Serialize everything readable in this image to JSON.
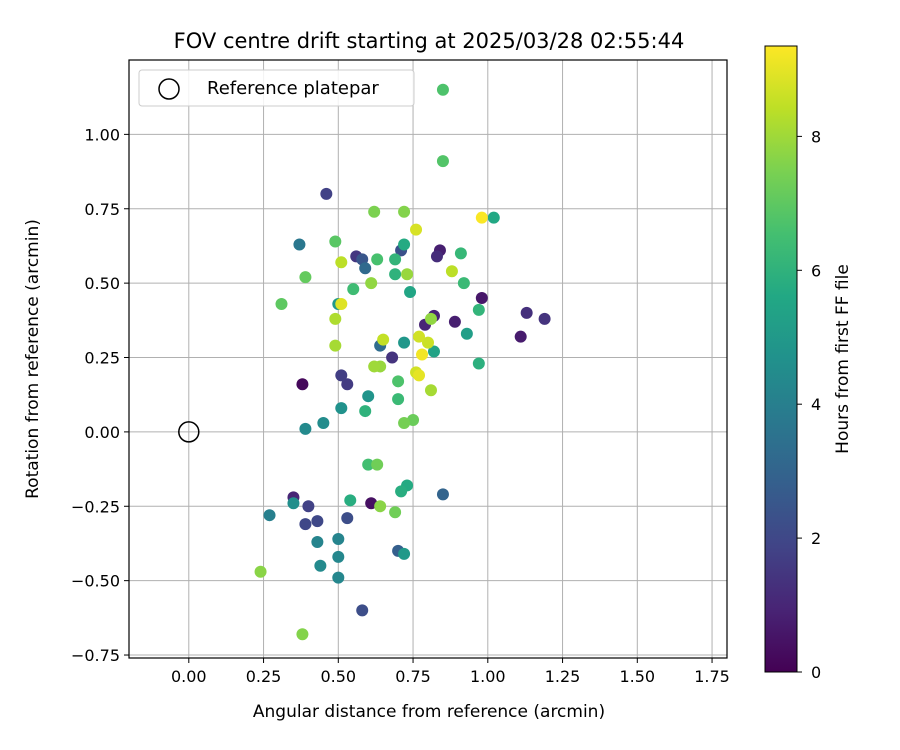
{
  "chart_data": {
    "type": "scatter",
    "title": "FOV centre drift starting at 2025/03/28 02:55:44",
    "xlabel": "Angular distance from reference (arcmin)",
    "ylabel": "Rotation from reference (arcmin)",
    "xlim": [
      -0.2,
      1.8
    ],
    "ylim": [
      -0.76,
      1.25
    ],
    "xticks": [
      "0.00",
      "0.25",
      "0.50",
      "0.75",
      "1.00",
      "1.25",
      "1.50",
      "1.75"
    ],
    "yticks": [
      "−0.75",
      "−0.50",
      "−0.25",
      "0.00",
      "0.25",
      "0.50",
      "0.75",
      "1.00"
    ],
    "grid": true,
    "legend": {
      "placement": "top-left",
      "entries": [
        "Reference platepar"
      ]
    },
    "reference_point": {
      "x": 0.0,
      "y": 0.0,
      "marker": "open-circle"
    },
    "colorbar": {
      "label": "Hours from first FF file",
      "colormap": "viridis",
      "range": [
        0,
        9.35
      ],
      "ticks": [
        "0",
        "2",
        "4",
        "6",
        "8"
      ]
    },
    "series": [
      {
        "points": [
          {
            "x": 0.38,
            "y": 0.16,
            "h": 0.2
          },
          {
            "x": 0.61,
            "y": -0.24,
            "h": 0.4
          },
          {
            "x": 0.84,
            "y": 0.61,
            "h": 0.8
          },
          {
            "x": 0.89,
            "y": 0.37,
            "h": 0.8
          },
          {
            "x": 1.11,
            "y": 0.32,
            "h": 0.7
          },
          {
            "x": 0.98,
            "y": 0.45,
            "h": 0.6
          },
          {
            "x": 0.35,
            "y": -0.22,
            "h": 1.0
          },
          {
            "x": 0.82,
            "y": 0.39,
            "h": 0.9
          },
          {
            "x": 0.79,
            "y": 0.36,
            "h": 1.0
          },
          {
            "x": 0.83,
            "y": 0.59,
            "h": 1.2
          },
          {
            "x": 1.13,
            "y": 0.4,
            "h": 1.3
          },
          {
            "x": 1.19,
            "y": 0.38,
            "h": 1.4
          },
          {
            "x": 0.68,
            "y": 0.25,
            "h": 1.4
          },
          {
            "x": 0.56,
            "y": 0.59,
            "h": 1.5
          },
          {
            "x": 0.53,
            "y": 0.16,
            "h": 1.6
          },
          {
            "x": 0.51,
            "y": 0.19,
            "h": 1.7
          },
          {
            "x": 0.46,
            "y": 0.8,
            "h": 1.8
          },
          {
            "x": 0.4,
            "y": -0.25,
            "h": 1.8
          },
          {
            "x": 0.39,
            "y": -0.31,
            "h": 2.0
          },
          {
            "x": 0.43,
            "y": -0.3,
            "h": 2.0
          },
          {
            "x": 0.53,
            "y": -0.29,
            "h": 2.2
          },
          {
            "x": 0.58,
            "y": -0.6,
            "h": 2.2
          },
          {
            "x": 0.71,
            "y": 0.61,
            "h": 2.3
          },
          {
            "x": 0.58,
            "y": 0.58,
            "h": 2.5
          },
          {
            "x": 0.7,
            "y": -0.4,
            "h": 2.8
          },
          {
            "x": 0.85,
            "y": -0.21,
            "h": 3.0
          },
          {
            "x": 0.59,
            "y": 0.55,
            "h": 3.2
          },
          {
            "x": 0.64,
            "y": 0.29,
            "h": 3.3
          },
          {
            "x": 0.37,
            "y": 0.63,
            "h": 3.7
          },
          {
            "x": 0.27,
            "y": -0.28,
            "h": 4.0
          },
          {
            "x": 0.5,
            "y": -0.36,
            "h": 4.2
          },
          {
            "x": 0.43,
            "y": -0.37,
            "h": 4.2
          },
          {
            "x": 0.5,
            "y": -0.42,
            "h": 4.3
          },
          {
            "x": 0.44,
            "y": -0.45,
            "h": 4.4
          },
          {
            "x": 0.5,
            "y": -0.49,
            "h": 4.3
          },
          {
            "x": 0.39,
            "y": 0.01,
            "h": 4.4
          },
          {
            "x": 0.45,
            "y": 0.03,
            "h": 4.5
          },
          {
            "x": 0.35,
            "y": -0.24,
            "h": 4.6
          },
          {
            "x": 0.51,
            "y": 0.08,
            "h": 4.7
          },
          {
            "x": 0.6,
            "y": 0.12,
            "h": 4.8
          },
          {
            "x": 0.72,
            "y": 0.3,
            "h": 4.9
          },
          {
            "x": 0.5,
            "y": 0.43,
            "h": 5.0
          },
          {
            "x": 0.72,
            "y": -0.41,
            "h": 5.0
          },
          {
            "x": 0.93,
            "y": 0.33,
            "h": 5.2
          },
          {
            "x": 0.82,
            "y": 0.27,
            "h": 5.4
          },
          {
            "x": 0.74,
            "y": 0.47,
            "h": 5.5
          },
          {
            "x": 1.02,
            "y": 0.72,
            "h": 5.6
          },
          {
            "x": 0.72,
            "y": 0.63,
            "h": 5.7
          },
          {
            "x": 0.73,
            "y": -0.18,
            "h": 5.7
          },
          {
            "x": 0.54,
            "y": -0.23,
            "h": 5.8
          },
          {
            "x": 0.71,
            "y": -0.2,
            "h": 5.8
          },
          {
            "x": 0.97,
            "y": 0.23,
            "h": 5.9
          },
          {
            "x": 0.69,
            "y": 0.53,
            "h": 6.0
          },
          {
            "x": 0.97,
            "y": 0.41,
            "h": 6.1
          },
          {
            "x": 0.59,
            "y": 0.07,
            "h": 6.0
          },
          {
            "x": 0.69,
            "y": 0.58,
            "h": 6.1
          },
          {
            "x": 0.91,
            "y": 0.6,
            "h": 6.2
          },
          {
            "x": 0.92,
            "y": 0.5,
            "h": 6.3
          },
          {
            "x": 0.7,
            "y": 0.11,
            "h": 6.3
          },
          {
            "x": 0.55,
            "y": 0.48,
            "h": 6.4
          },
          {
            "x": 0.6,
            "y": -0.11,
            "h": 6.5
          },
          {
            "x": 0.63,
            "y": 0.58,
            "h": 6.6
          },
          {
            "x": 0.85,
            "y": 1.15,
            "h": 6.7
          },
          {
            "x": 0.85,
            "y": 0.91,
            "h": 6.8
          },
          {
            "x": 0.7,
            "y": 0.17,
            "h": 6.7
          },
          {
            "x": 0.49,
            "y": 0.64,
            "h": 6.9
          },
          {
            "x": 0.31,
            "y": 0.43,
            "h": 7.0
          },
          {
            "x": 0.39,
            "y": 0.52,
            "h": 7.1
          },
          {
            "x": 0.75,
            "y": 0.04,
            "h": 7.2
          },
          {
            "x": 0.69,
            "y": -0.27,
            "h": 7.3
          },
          {
            "x": 0.63,
            "y": -0.11,
            "h": 7.3
          },
          {
            "x": 0.72,
            "y": 0.03,
            "h": 7.4
          },
          {
            "x": 0.62,
            "y": 0.74,
            "h": 7.5
          },
          {
            "x": 0.72,
            "y": 0.74,
            "h": 7.6
          },
          {
            "x": 0.38,
            "y": -0.68,
            "h": 7.6
          },
          {
            "x": 0.24,
            "y": -0.47,
            "h": 7.7
          },
          {
            "x": 0.64,
            "y": -0.25,
            "h": 7.7
          },
          {
            "x": 0.81,
            "y": 0.38,
            "h": 7.8
          },
          {
            "x": 0.61,
            "y": 0.5,
            "h": 7.8
          },
          {
            "x": 0.73,
            "y": 0.53,
            "h": 7.9
          },
          {
            "x": 0.64,
            "y": 0.22,
            "h": 7.9
          },
          {
            "x": 0.62,
            "y": 0.22,
            "h": 8.0
          },
          {
            "x": 0.81,
            "y": 0.14,
            "h": 8.1
          },
          {
            "x": 0.49,
            "y": 0.29,
            "h": 8.1
          },
          {
            "x": 0.49,
            "y": 0.38,
            "h": 8.2
          },
          {
            "x": 0.51,
            "y": 0.57,
            "h": 8.4
          },
          {
            "x": 0.88,
            "y": 0.54,
            "h": 8.4
          },
          {
            "x": 0.65,
            "y": 0.31,
            "h": 8.5
          },
          {
            "x": 0.8,
            "y": 0.3,
            "h": 8.6
          },
          {
            "x": 0.77,
            "y": 0.32,
            "h": 8.7
          },
          {
            "x": 0.76,
            "y": 0.2,
            "h": 8.7
          },
          {
            "x": 0.76,
            "y": 0.68,
            "h": 8.8
          },
          {
            "x": 0.51,
            "y": 0.43,
            "h": 8.9
          },
          {
            "x": 0.77,
            "y": 0.19,
            "h": 9.0
          },
          {
            "x": 0.78,
            "y": 0.26,
            "h": 9.2
          },
          {
            "x": 0.98,
            "y": 0.72,
            "h": 9.3
          }
        ]
      }
    ]
  }
}
